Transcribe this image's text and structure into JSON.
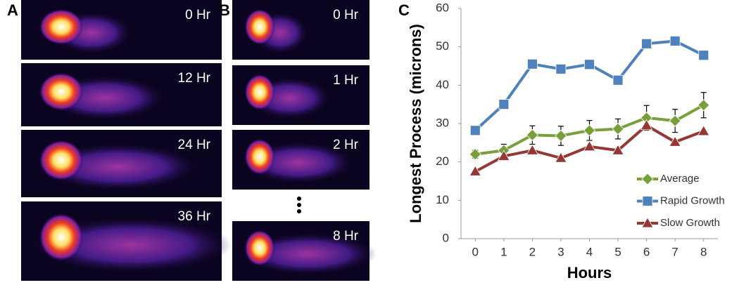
{
  "panels": [
    {
      "label": "A",
      "frames": [
        "0 Hr",
        "12 Hr",
        "24 Hr",
        "36 Hr"
      ]
    },
    {
      "label": "B",
      "frames": [
        "0 Hr",
        "1 Hr",
        "2 Hr",
        "8 Hr"
      ]
    }
  ],
  "chart_data": {
    "type": "line",
    "label": "C",
    "x_label": "Hours",
    "y_label": "Longest Process (microns)",
    "x": [
      0,
      1,
      2,
      3,
      4,
      5,
      6,
      7,
      8
    ],
    "xlim": [
      -0.5,
      8.5
    ],
    "xticks": [
      0,
      1,
      2,
      3,
      4,
      5,
      6,
      7,
      8
    ],
    "ylim": [
      0,
      60
    ],
    "yticks": [
      0,
      10,
      20,
      30,
      40,
      50,
      60
    ],
    "grid": false,
    "legend": "lower right",
    "series": [
      {
        "name": "Average",
        "color": "#77a03a",
        "marker": "diamond",
        "values": [
          22,
          23,
          27,
          26.8,
          28.2,
          28.6,
          31.5,
          30.7,
          34.8
        ],
        "errors": [
          1,
          1.6,
          2.4,
          2.5,
          2.6,
          2.6,
          3.2,
          3,
          3.3
        ]
      },
      {
        "name": "Rapid Growth",
        "color": "#4f81bd",
        "marker": "square",
        "values": [
          28.2,
          35,
          45.5,
          44.2,
          45.4,
          41.3,
          50.8,
          51.5,
          47.8
        ]
      },
      {
        "name": "Slow Growth",
        "color": "#953735",
        "marker": "triangle",
        "values": [
          17.5,
          21.5,
          23,
          21,
          24,
          23,
          29.5,
          25.2,
          28
        ]
      }
    ]
  }
}
